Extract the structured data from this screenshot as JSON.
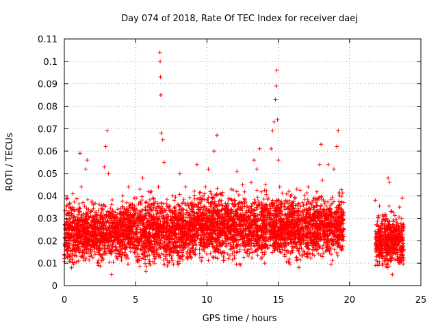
{
  "chart_data": {
    "type": "scatter",
    "title": "Day 074 of 2018, Rate Of TEC Index for receiver daej",
    "xlabel": "GPS time / hours",
    "ylabel": "ROTI / TECUs",
    "xlim": [
      0,
      25
    ],
    "ylim": [
      0,
      0.11
    ],
    "x_ticks": [
      0,
      5,
      10,
      15,
      20,
      25
    ],
    "x_tick_labels": [
      "0",
      "5",
      "10",
      "15",
      "20",
      "25"
    ],
    "y_ticks": [
      0,
      0.01,
      0.02,
      0.03,
      0.04,
      0.05,
      0.06,
      0.07,
      0.08,
      0.09,
      0.1,
      0.11
    ],
    "y_tick_labels": [
      "0",
      "0.01",
      "0.02",
      "0.03",
      "0.04",
      "0.05",
      "0.06",
      "0.07",
      "0.08",
      "0.09",
      "0.1",
      "0.11"
    ],
    "grid": true,
    "marker": "+",
    "color": "#ff0000",
    "series": [
      {
        "name": "",
        "points": [
          [
            0.0,
            0.012
          ],
          [
            0.1,
            0.018
          ],
          [
            0.2,
            0.039
          ],
          [
            0.3,
            0.022
          ],
          [
            0.4,
            0.035
          ],
          [
            0.5,
            0.008
          ],
          [
            0.6,
            0.041
          ],
          [
            0.7,
            0.025
          ],
          [
            0.8,
            0.015
          ],
          [
            0.9,
            0.029
          ],
          [
            1.0,
            0.011
          ],
          [
            1.1,
            0.059
          ],
          [
            1.2,
            0.044
          ],
          [
            1.3,
            0.037
          ],
          [
            1.4,
            0.021
          ],
          [
            1.5,
            0.052
          ],
          [
            1.6,
            0.056
          ],
          [
            1.7,
            0.034
          ],
          [
            1.8,
            0.013
          ],
          [
            1.9,
            0.027
          ],
          [
            2.0,
            0.018
          ],
          [
            2.2,
            0.031
          ],
          [
            2.4,
            0.009
          ],
          [
            2.6,
            0.024
          ],
          [
            2.8,
            0.053
          ],
          [
            2.9,
            0.062
          ],
          [
            3.0,
            0.069
          ],
          [
            3.1,
            0.05
          ],
          [
            3.2,
            0.015
          ],
          [
            3.3,
            0.005
          ],
          [
            3.5,
            0.022
          ],
          [
            3.7,
            0.019
          ],
          [
            3.9,
            0.032
          ],
          [
            4.1,
            0.04
          ],
          [
            4.3,
            0.016
          ],
          [
            4.5,
            0.044
          ],
          [
            4.7,
            0.028
          ],
          [
            4.9,
            0.039
          ],
          [
            5.1,
            0.011
          ],
          [
            5.3,
            0.043
          ],
          [
            5.5,
            0.048
          ],
          [
            5.7,
            0.035
          ],
          [
            5.9,
            0.021
          ],
          [
            6.1,
            0.042
          ],
          [
            6.3,
            0.03
          ],
          [
            6.5,
            0.014
          ],
          [
            6.6,
            0.044
          ],
          [
            6.7,
            0.104
          ],
          [
            6.72,
            0.1
          ],
          [
            6.74,
            0.093
          ],
          [
            6.76,
            0.085
          ],
          [
            6.8,
            0.068
          ],
          [
            6.9,
            0.065
          ],
          [
            7.0,
            0.055
          ],
          [
            7.1,
            0.012
          ],
          [
            7.3,
            0.031
          ],
          [
            7.5,
            0.024
          ],
          [
            7.7,
            0.038
          ],
          [
            7.9,
            0.017
          ],
          [
            8.1,
            0.05
          ],
          [
            8.3,
            0.029
          ],
          [
            8.5,
            0.044
          ],
          [
            8.7,
            0.021
          ],
          [
            8.9,
            0.036
          ],
          [
            9.1,
            0.014
          ],
          [
            9.3,
            0.054
          ],
          [
            9.5,
            0.034
          ],
          [
            9.7,
            0.027
          ],
          [
            9.9,
            0.044
          ],
          [
            10.1,
            0.052
          ],
          [
            10.3,
            0.019
          ],
          [
            10.5,
            0.06
          ],
          [
            10.7,
            0.067
          ],
          [
            10.9,
            0.041
          ],
          [
            11.1,
            0.023
          ],
          [
            11.3,
            0.034
          ],
          [
            11.5,
            0.012
          ],
          [
            11.7,
            0.043
          ],
          [
            11.9,
            0.038
          ],
          [
            12.1,
            0.051
          ],
          [
            12.3,
            0.024
          ],
          [
            12.5,
            0.045
          ],
          [
            12.7,
            0.018
          ],
          [
            12.9,
            0.031
          ],
          [
            13.1,
            0.046
          ],
          [
            13.3,
            0.056
          ],
          [
            13.5,
            0.052
          ],
          [
            13.7,
            0.061
          ],
          [
            13.9,
            0.026
          ],
          [
            14.1,
            0.045
          ],
          [
            14.3,
            0.039
          ],
          [
            14.5,
            0.061
          ],
          [
            14.6,
            0.069
          ],
          [
            14.7,
            0.073
          ],
          [
            14.8,
            0.083
          ],
          [
            14.85,
            0.089
          ],
          [
            14.9,
            0.096
          ],
          [
            14.95,
            0.074
          ],
          [
            15.0,
            0.056
          ],
          [
            15.1,
            0.044
          ],
          [
            15.3,
            0.029
          ],
          [
            15.5,
            0.038
          ],
          [
            15.7,
            0.015
          ],
          [
            15.9,
            0.034
          ],
          [
            16.1,
            0.026
          ],
          [
            16.3,
            0.043
          ],
          [
            16.5,
            0.019
          ],
          [
            16.7,
            0.037
          ],
          [
            16.9,
            0.028
          ],
          [
            17.1,
            0.044
          ],
          [
            17.3,
            0.022
          ],
          [
            17.5,
            0.039
          ],
          [
            17.7,
            0.016
          ],
          [
            17.9,
            0.054
          ],
          [
            18.0,
            0.063
          ],
          [
            18.1,
            0.047
          ],
          [
            18.3,
            0.024
          ],
          [
            18.5,
            0.054
          ],
          [
            18.7,
            0.031
          ],
          [
            18.9,
            0.052
          ],
          [
            19.1,
            0.062
          ],
          [
            19.2,
            0.069
          ],
          [
            19.3,
            0.04
          ],
          [
            19.4,
            0.017
          ],
          [
            19.5,
            0.029
          ],
          [
            21.8,
            0.038
          ],
          [
            21.9,
            0.016
          ],
          [
            22.0,
            0.009
          ],
          [
            22.1,
            0.024
          ],
          [
            22.3,
            0.012
          ],
          [
            22.5,
            0.031
          ],
          [
            22.7,
            0.048
          ],
          [
            22.8,
            0.046
          ],
          [
            22.9,
            0.033
          ],
          [
            23.0,
            0.005
          ],
          [
            23.1,
            0.022
          ],
          [
            23.3,
            0.028
          ],
          [
            23.5,
            0.035
          ],
          [
            23.7,
            0.039
          ]
        ]
      }
    ],
    "dense_band": {
      "description_segments": [
        [
          0.0,
          1.5,
          0.006,
          0.042
        ],
        [
          1.5,
          4.0,
          0.007,
          0.04
        ],
        [
          4.0,
          9.0,
          0.005,
          0.044
        ],
        [
          9.0,
          14.0,
          0.007,
          0.046
        ],
        [
          14.0,
          17.5,
          0.007,
          0.045
        ],
        [
          17.5,
          19.6,
          0.008,
          0.045
        ],
        [
          21.8,
          23.8,
          0.005,
          0.036
        ]
      ]
    }
  }
}
